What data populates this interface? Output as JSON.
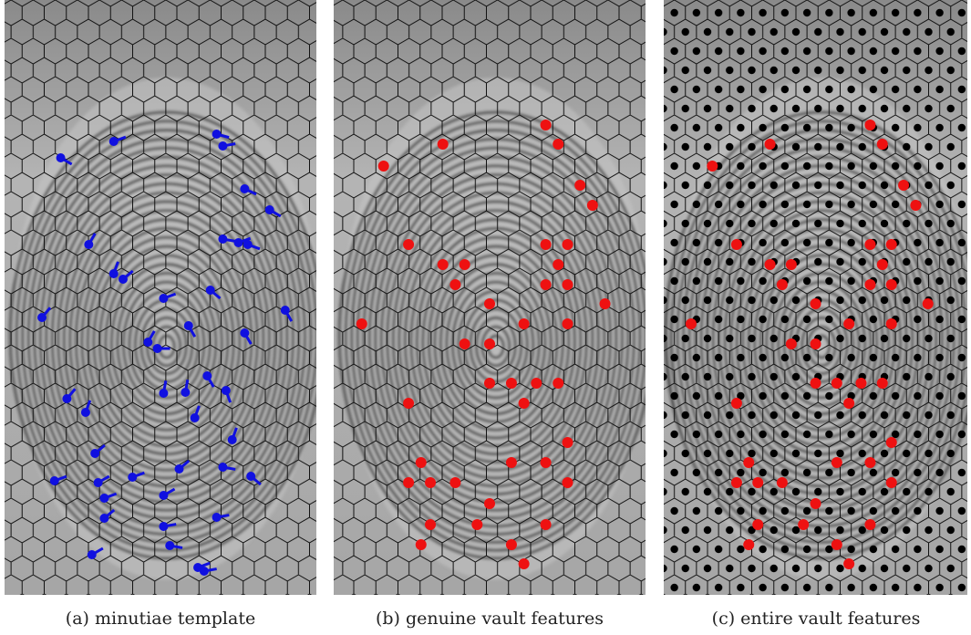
{
  "figure": {
    "panels": [
      {
        "caption": "(a) minutiae template"
      },
      {
        "caption": "(b) genuine vault features"
      },
      {
        "caption": "(c) entire vault features"
      }
    ]
  }
}
